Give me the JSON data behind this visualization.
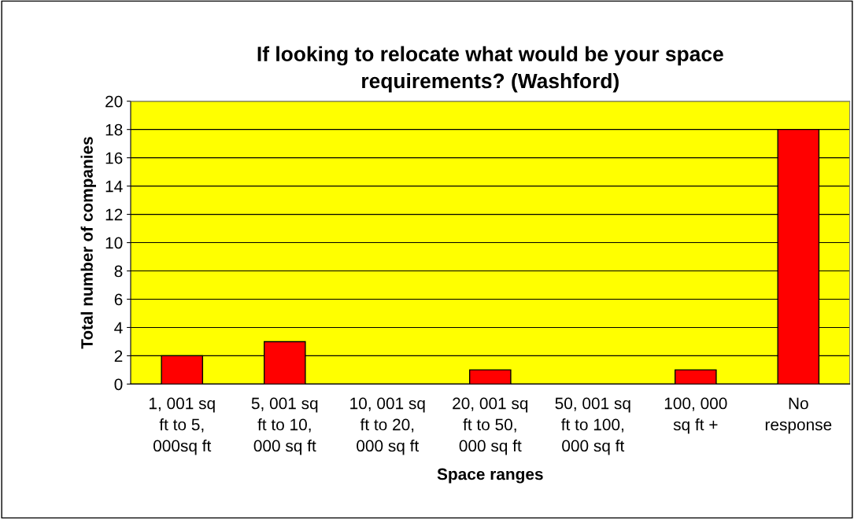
{
  "chart_data": {
    "type": "bar",
    "title": "If looking to relocate what would be your space\nrequirements? (Washford)",
    "xlabel": "Space ranges",
    "ylabel": "Total number of companies",
    "categories": [
      "1, 001 sq\nft to 5,\n000sq ft",
      "5, 001 sq\nft to 10,\n000 sq ft",
      "10, 001 sq\nft to 20,\n000 sq ft",
      "20, 001 sq\nft to 50,\n000 sq ft",
      "50, 001 sq\nft to 100,\n000 sq ft",
      "100, 000\nsq ft +",
      "No\nresponse"
    ],
    "values": [
      2,
      3,
      0,
      1,
      0,
      1,
      18
    ],
    "color": "#ff0000",
    "ylim": [
      0,
      20
    ],
    "yticks": [
      0,
      2,
      4,
      6,
      8,
      10,
      12,
      14,
      16,
      18,
      20
    ],
    "grid": "y"
  }
}
